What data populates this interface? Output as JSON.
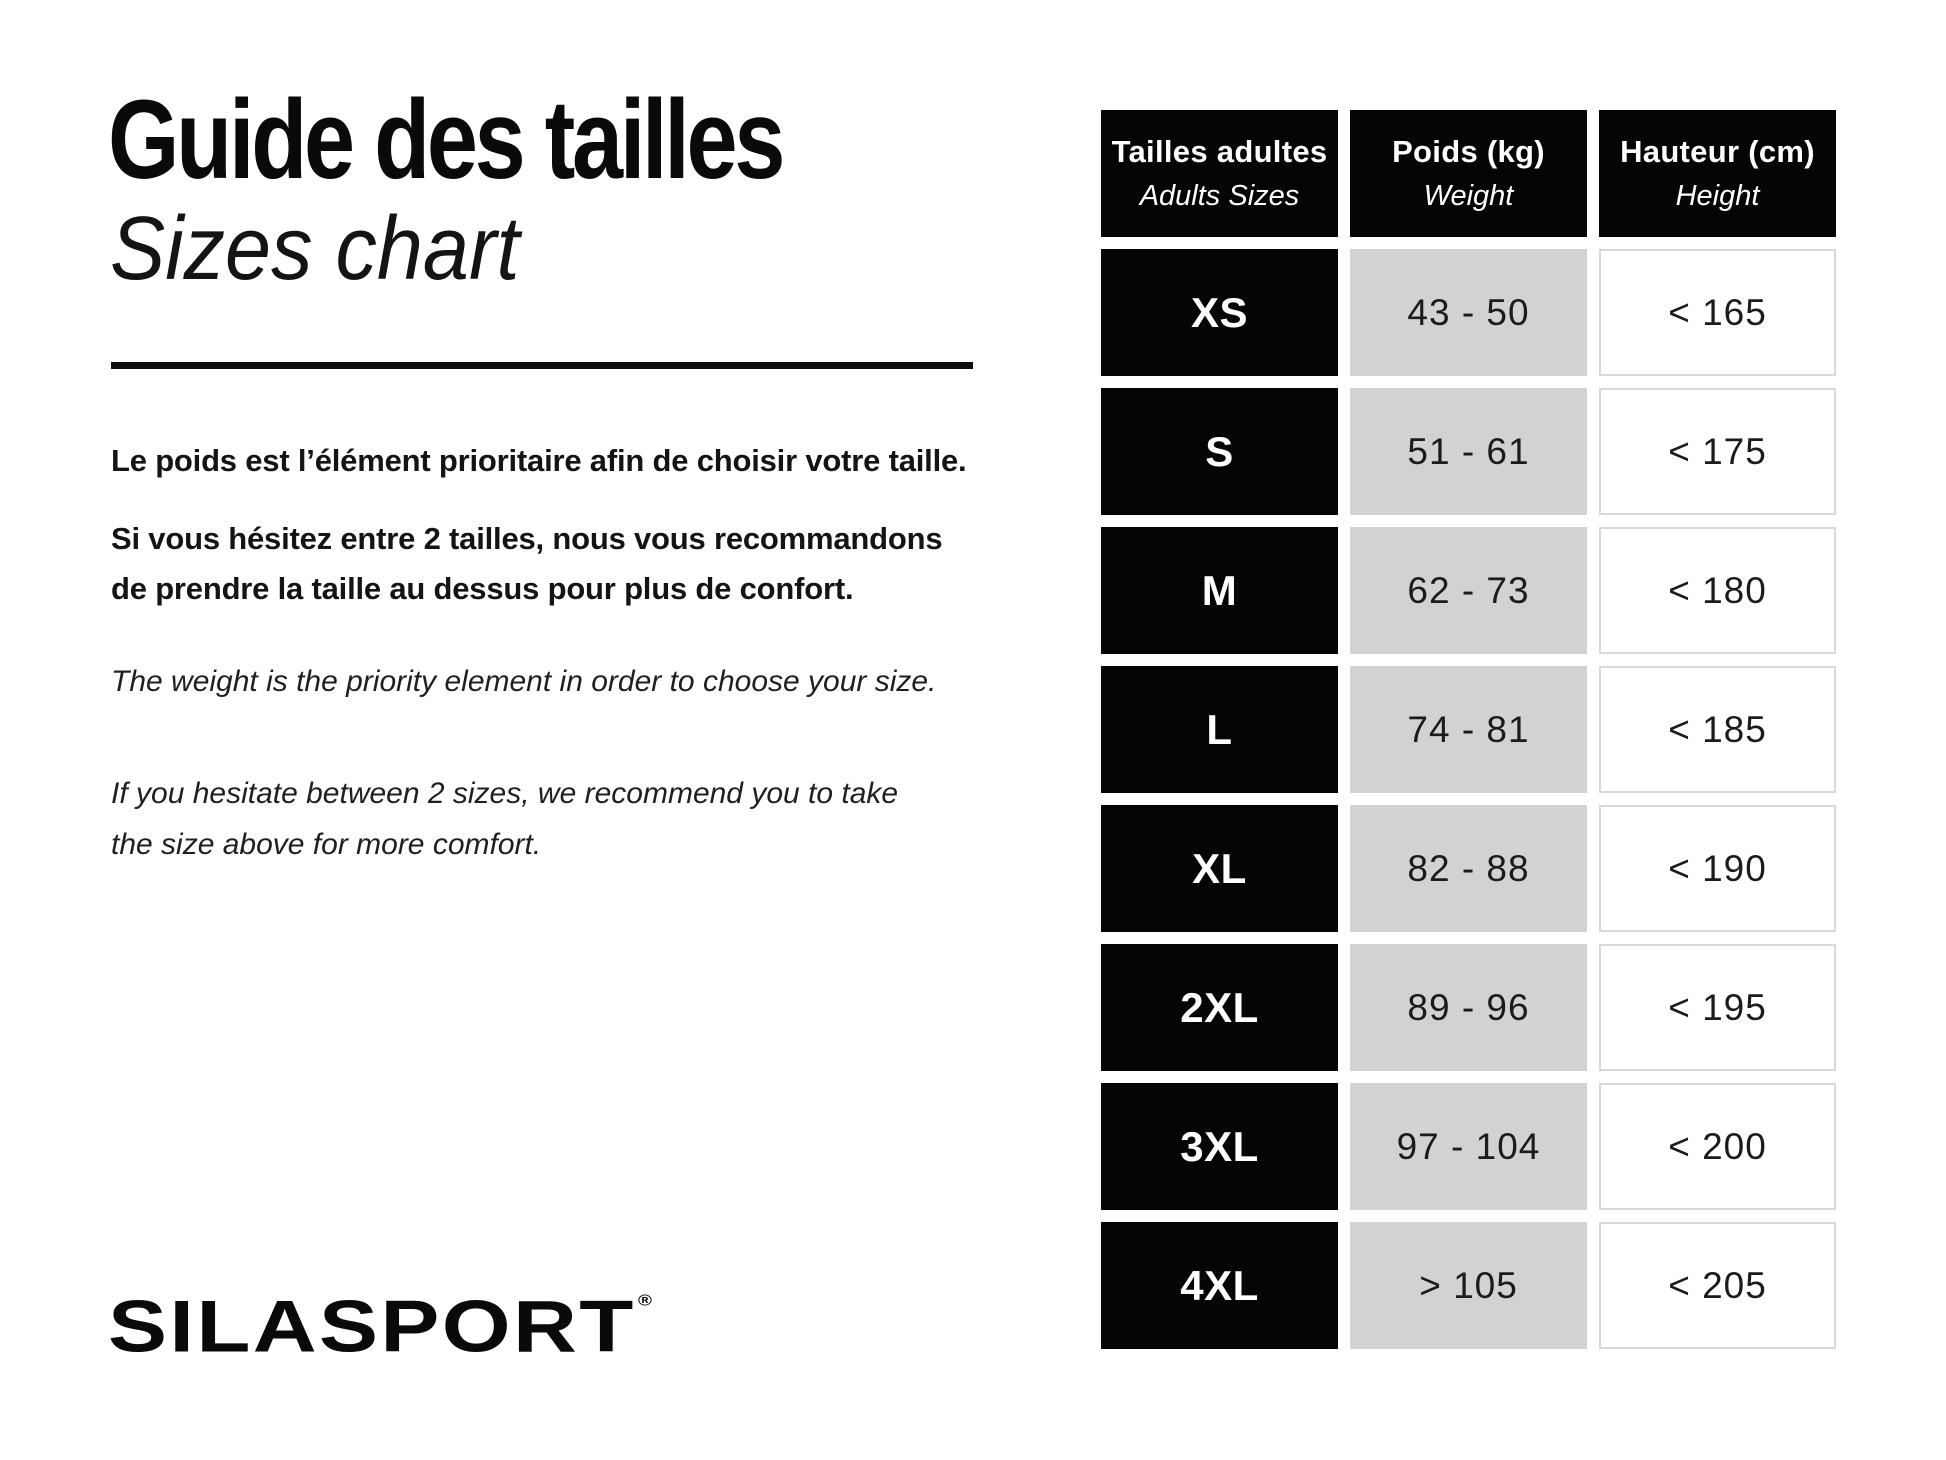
{
  "header": {
    "title": "Guide des tailles",
    "subtitle": "Sizes chart"
  },
  "intro": {
    "fr_line1": "Le poids est l’élément prioritaire afin de choisir votre taille.",
    "fr_line2": "Si vous hésitez entre 2 tailles, nous vous recommandons\nde prendre la taille au dessus pour plus de confort.",
    "en_line1": "The weight is the priority element in order to choose your size.",
    "en_line2": "If you hesitate between 2 sizes, we recommend you to take\nthe size above for more comfort."
  },
  "logo": {
    "text": "SILASPORT",
    "registered": "®"
  },
  "table": {
    "columns": [
      {
        "title": "Tailles adultes",
        "subtitle": "Adults Sizes"
      },
      {
        "title": "Poids (kg)",
        "subtitle": "Weight"
      },
      {
        "title": "Hauteur (cm)",
        "subtitle": "Height"
      }
    ],
    "rows": [
      {
        "size": "XS",
        "weight": "43 - 50",
        "height": "< 165"
      },
      {
        "size": "S",
        "weight": "51 - 61",
        "height": "< 175"
      },
      {
        "size": "M",
        "weight": "62 - 73",
        "height": "< 180"
      },
      {
        "size": "L",
        "weight": "74 - 81",
        "height": "< 185"
      },
      {
        "size": "XL",
        "weight": "82 - 88",
        "height": "< 190"
      },
      {
        "size": "2XL",
        "weight": "89 - 96",
        "height": "< 195"
      },
      {
        "size": "3XL",
        "weight": "97 - 104",
        "height": "< 200"
      },
      {
        "size": "4XL",
        "weight": "> 105",
        "height": "< 205"
      }
    ]
  },
  "colors": {
    "black": "#050505",
    "gray_cell": "#d2d2d2",
    "cell_border": "#d8d8d8",
    "background": "#ffffff"
  }
}
